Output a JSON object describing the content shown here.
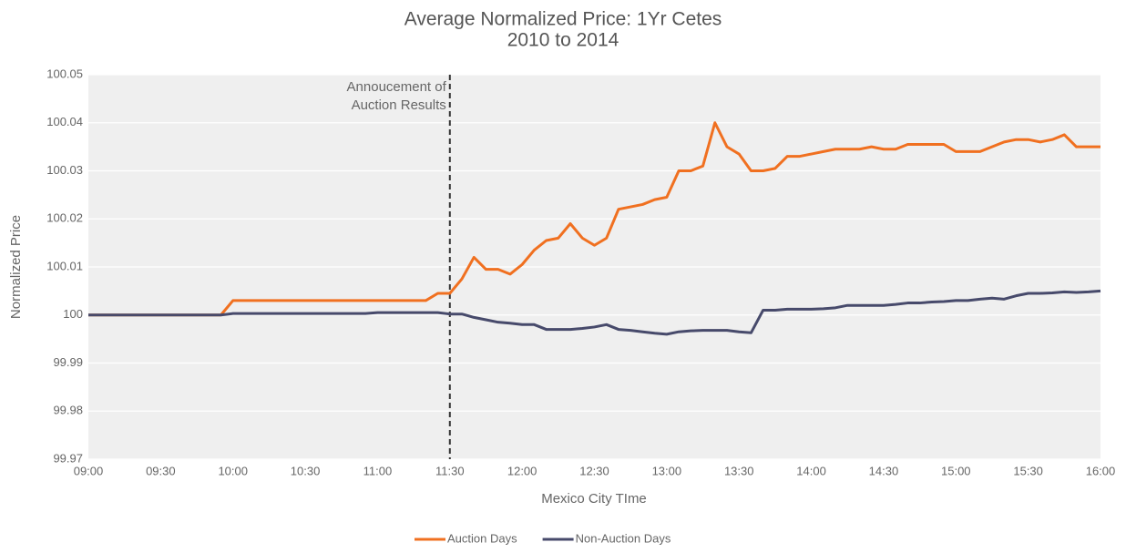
{
  "chart_data": {
    "type": "line",
    "title": "Average Normalized Price: 1Yr Cetes",
    "subtitle": "2010 to 2014",
    "x_label": "Mexico City TIme",
    "y_label": "Normalized Price",
    "x": [
      "09:00",
      "09:05",
      "09:10",
      "09:15",
      "09:20",
      "09:25",
      "09:30",
      "09:35",
      "09:40",
      "09:45",
      "09:50",
      "09:55",
      "10:00",
      "10:05",
      "10:10",
      "10:15",
      "10:20",
      "10:25",
      "10:30",
      "10:35",
      "10:40",
      "10:45",
      "10:50",
      "10:55",
      "11:00",
      "11:05",
      "11:10",
      "11:15",
      "11:20",
      "11:25",
      "11:30",
      "11:35",
      "11:40",
      "11:45",
      "11:50",
      "11:55",
      "12:00",
      "12:05",
      "12:10",
      "12:15",
      "12:20",
      "12:25",
      "12:30",
      "12:35",
      "12:40",
      "12:45",
      "12:50",
      "12:55",
      "13:00",
      "13:05",
      "13:10",
      "13:15",
      "13:20",
      "13:25",
      "13:30",
      "13:35",
      "13:40",
      "13:45",
      "13:50",
      "13:55",
      "14:00",
      "14:05",
      "14:10",
      "14:15",
      "14:20",
      "14:25",
      "14:30",
      "14:35",
      "14:40",
      "14:45",
      "14:50",
      "14:55",
      "15:00",
      "15:05",
      "15:10",
      "15:15",
      "15:20",
      "15:25",
      "15:30",
      "15:35",
      "15:40",
      "15:45",
      "15:50",
      "15:55",
      "16:00"
    ],
    "series": [
      {
        "name": "Auction Days",
        "color": "#f07020",
        "values": [
          100,
          100,
          100,
          100,
          100,
          100,
          100,
          100,
          100,
          100,
          100,
          100,
          100.003,
          100.003,
          100.003,
          100.003,
          100.003,
          100.003,
          100.003,
          100.003,
          100.003,
          100.003,
          100.003,
          100.003,
          100.003,
          100.003,
          100.003,
          100.003,
          100.003,
          100.0045,
          100.0045,
          100.0075,
          100.012,
          100.0095,
          100.0095,
          100.0085,
          100.0105,
          100.0135,
          100.0155,
          100.016,
          100.019,
          100.016,
          100.0145,
          100.016,
          100.022,
          100.0225,
          100.023,
          100.024,
          100.0245,
          100.03,
          100.03,
          100.031,
          100.04,
          100.035,
          100.0335,
          100.03,
          100.03,
          100.0305,
          100.033,
          100.033,
          100.0335,
          100.034,
          100.0345,
          100.0345,
          100.0345,
          100.035,
          100.0345,
          100.0345,
          100.0355,
          100.0355,
          100.0355,
          100.0355,
          100.034,
          100.034,
          100.034,
          100.035,
          100.036,
          100.0365,
          100.0365,
          100.036,
          100.0365,
          100.0375,
          100.035,
          100.035,
          100.035
        ]
      },
      {
        "name": "Non-Auction Days",
        "color": "#474a6b",
        "values": [
          100,
          100,
          100,
          100,
          100,
          100,
          100,
          100,
          100,
          100,
          100,
          100,
          100.0003,
          100.0003,
          100.0003,
          100.0003,
          100.0003,
          100.0003,
          100.0003,
          100.0003,
          100.0003,
          100.0003,
          100.0003,
          100.0003,
          100.0005,
          100.0005,
          100.0005,
          100.0005,
          100.0005,
          100.0005,
          100.0002,
          100.0002,
          99.9995,
          99.999,
          99.9985,
          99.9983,
          99.998,
          99.998,
          99.997,
          99.997,
          99.997,
          99.9972,
          99.9975,
          99.998,
          99.997,
          99.9968,
          99.9965,
          99.9962,
          99.996,
          99.9965,
          99.9967,
          99.9968,
          99.9968,
          99.9968,
          99.9965,
          99.9963,
          100.001,
          100.001,
          100.0012,
          100.0012,
          100.0012,
          100.0013,
          100.0015,
          100.002,
          100.002,
          100.002,
          100.002,
          100.0022,
          100.0025,
          100.0025,
          100.0027,
          100.0028,
          100.003,
          100.003,
          100.0033,
          100.0035,
          100.0033,
          100.004,
          100.0045,
          100.0045,
          100.0046,
          100.0048,
          100.0047,
          100.0048,
          100.005
        ]
      }
    ],
    "xlim": [
      "09:00",
      "16:00"
    ],
    "xticks": [
      "09:00",
      "09:30",
      "10:00",
      "10:30",
      "11:00",
      "11:30",
      "12:00",
      "12:30",
      "13:00",
      "13:30",
      "14:00",
      "14:30",
      "15:00",
      "15:30",
      "16:00"
    ],
    "ylim": [
      99.97,
      100.05
    ],
    "yticks": [
      99.97,
      99.98,
      99.99,
      100,
      100.01,
      100.02,
      100.03,
      100.04,
      100.05
    ],
    "grid": true,
    "legend": "bottom",
    "annotation": {
      "text": [
        "Annoucement of",
        "Auction Results"
      ],
      "x": "11:30"
    }
  }
}
